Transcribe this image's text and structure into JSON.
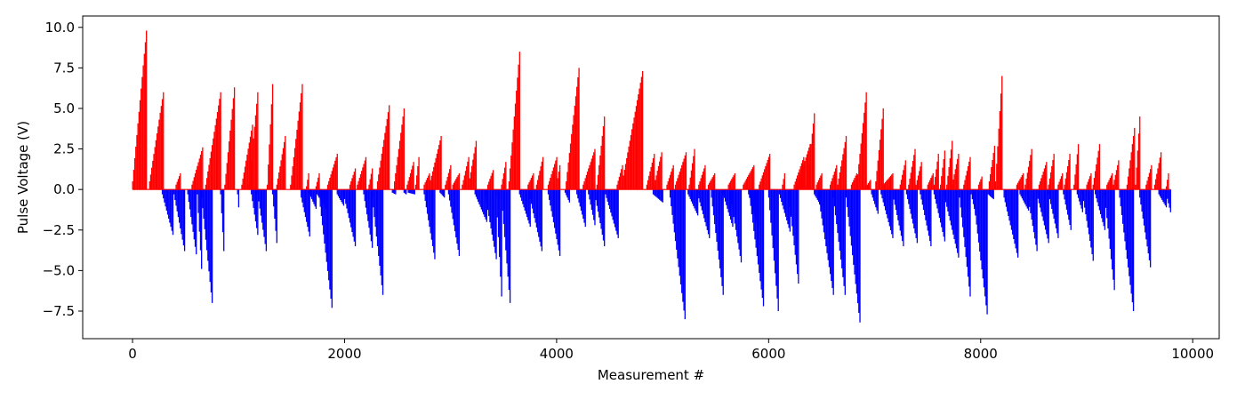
{
  "chart_data": {
    "type": "bar",
    "title": "",
    "xlabel": "Measurement #",
    "ylabel": "Pulse Voltage (V)",
    "xlim": [
      -470,
      10250
    ],
    "ylim": [
      -9.2,
      10.7
    ],
    "xticks": [
      0,
      2000,
      4000,
      6000,
      8000,
      10000
    ],
    "yticks": [
      -7.5,
      -5.0,
      -2.5,
      0.0,
      2.5,
      5.0,
      7.5,
      10.0
    ],
    "ytick_labels": [
      "−7.5",
      "−5.0",
      "−2.5",
      "0.0",
      "2.5",
      "5.0",
      "7.5",
      "10.0"
    ],
    "grid": false,
    "colors": {
      "positive": "#ff0000",
      "negative": "#0000ff"
    },
    "sample_step": 10,
    "positive_ramps": [
      [
        0,
        130,
        0.5,
        9.8
      ],
      [
        160,
        290,
        0.5,
        6.0
      ],
      [
        410,
        450,
        0.3,
        1.0
      ],
      [
        560,
        660,
        0.3,
        2.6
      ],
      [
        690,
        830,
        0.3,
        6.0
      ],
      [
        870,
        960,
        0.3,
        6.3
      ],
      [
        1030,
        1130,
        0.3,
        4.0
      ],
      [
        1100,
        1180,
        0.3,
        6.0
      ],
      [
        1270,
        1320,
        0.3,
        6.5
      ],
      [
        1360,
        1440,
        0.3,
        3.3
      ],
      [
        1490,
        1600,
        0.3,
        6.5
      ],
      [
        1640,
        1660,
        0.2,
        1.0
      ],
      [
        1730,
        1760,
        0.2,
        1.0
      ],
      [
        1840,
        1930,
        0.3,
        2.2
      ],
      [
        2050,
        2100,
        0.3,
        1.3
      ],
      [
        2120,
        2200,
        0.3,
        2.0
      ],
      [
        2230,
        2260,
        0.3,
        1.3
      ],
      [
        2310,
        2420,
        0.5,
        5.2
      ],
      [
        2470,
        2560,
        0.5,
        5.0
      ],
      [
        2590,
        2650,
        0.3,
        1.7
      ],
      [
        2670,
        2700,
        0.3,
        2.0
      ],
      [
        2750,
        2800,
        0.3,
        1.0
      ],
      [
        2800,
        2910,
        0.3,
        3.3
      ],
      [
        2950,
        3000,
        0.3,
        1.5
      ],
      [
        3020,
        3080,
        0.3,
        1.0
      ],
      [
        3110,
        3170,
        0.3,
        2.0
      ],
      [
        3170,
        3240,
        0.3,
        3.0
      ],
      [
        3350,
        3400,
        0.3,
        1.2
      ],
      [
        3480,
        3520,
        0.3,
        1.7
      ],
      [
        3550,
        3650,
        0.5,
        8.5
      ],
      [
        3730,
        3780,
        0.3,
        1.0
      ],
      [
        3810,
        3870,
        0.3,
        2.0
      ],
      [
        3920,
        4000,
        0.3,
        2.0
      ],
      [
        4000,
        4030,
        0.3,
        1.5
      ],
      [
        4090,
        4210,
        0.5,
        7.5
      ],
      [
        4250,
        4360,
        0.3,
        2.5
      ],
      [
        4380,
        4450,
        0.3,
        4.5
      ],
      [
        4570,
        4620,
        0.3,
        1.5
      ],
      [
        4620,
        4810,
        0.5,
        7.3
      ],
      [
        4850,
        4920,
        0.3,
        2.2
      ],
      [
        4920,
        4990,
        0.3,
        2.3
      ],
      [
        5040,
        5100,
        0.3,
        1.5
      ],
      [
        5120,
        5220,
        0.3,
        2.3
      ],
      [
        5250,
        5300,
        0.3,
        2.5
      ],
      [
        5340,
        5400,
        0.3,
        1.5
      ],
      [
        5430,
        5490,
        0.3,
        1.0
      ],
      [
        5620,
        5680,
        0.3,
        1.0
      ],
      [
        5760,
        5860,
        0.3,
        1.5
      ],
      [
        5910,
        6010,
        0.3,
        2.2
      ],
      [
        6130,
        6150,
        0.3,
        1.0
      ],
      [
        6240,
        6330,
        0.3,
        2.0
      ],
      [
        6270,
        6390,
        0.3,
        2.8
      ],
      [
        6360,
        6430,
        0.3,
        4.7
      ],
      [
        6450,
        6500,
        0.3,
        1.0
      ],
      [
        6580,
        6640,
        0.3,
        1.5
      ],
      [
        6650,
        6730,
        0.3,
        3.3
      ],
      [
        6780,
        6830,
        0.3,
        1.0
      ],
      [
        6830,
        6920,
        0.3,
        6.0
      ],
      [
        6920,
        6960,
        0.2,
        0.6
      ],
      [
        7010,
        7080,
        0.5,
        5.0
      ],
      [
        7080,
        7170,
        0.3,
        1.0
      ],
      [
        7240,
        7290,
        0.3,
        1.8
      ],
      [
        7320,
        7380,
        0.3,
        2.5
      ],
      [
        7390,
        7440,
        0.3,
        1.7
      ],
      [
        7500,
        7550,
        0.3,
        1.0
      ],
      [
        7560,
        7600,
        0.3,
        2.2
      ],
      [
        7620,
        7660,
        0.3,
        2.4
      ],
      [
        7680,
        7730,
        0.3,
        3.0
      ],
      [
        7730,
        7790,
        0.3,
        2.2
      ],
      [
        7840,
        7900,
        0.3,
        2.0
      ],
      [
        7980,
        8010,
        0.3,
        0.8
      ],
      [
        8080,
        8130,
        0.5,
        2.7
      ],
      [
        8140,
        8200,
        0.5,
        7.0
      ],
      [
        8340,
        8400,
        0.3,
        1.0
      ],
      [
        8420,
        8480,
        0.3,
        2.5
      ],
      [
        8550,
        8620,
        0.3,
        1.7
      ],
      [
        8640,
        8690,
        0.3,
        2.2
      ],
      [
        8730,
        8770,
        0.3,
        1.0
      ],
      [
        8790,
        8840,
        0.3,
        2.2
      ],
      [
        8880,
        8920,
        0.3,
        2.8
      ],
      [
        9000,
        9040,
        0.3,
        1.0
      ],
      [
        9060,
        9120,
        0.3,
        2.8
      ],
      [
        9190,
        9240,
        0.3,
        1.0
      ],
      [
        9250,
        9300,
        0.3,
        1.8
      ],
      [
        9380,
        9450,
        0.3,
        3.8
      ],
      [
        9460,
        9500,
        0.3,
        4.5
      ],
      [
        9560,
        9610,
        0.3,
        1.5
      ],
      [
        9640,
        9700,
        0.3,
        2.3
      ],
      [
        9750,
        9770,
        0.2,
        1.0
      ]
    ],
    "negative_ramps": [
      [
        280,
        380,
        -0.3,
        -2.8
      ],
      [
        390,
        490,
        -0.3,
        -3.8
      ],
      [
        520,
        600,
        -0.3,
        -4.0
      ],
      [
        610,
        650,
        -0.3,
        -4.9
      ],
      [
        650,
        750,
        -0.5,
        -7.0
      ],
      [
        830,
        860,
        -0.3,
        -3.8
      ],
      [
        990,
        1000,
        -0.3,
        -1.1
      ],
      [
        1120,
        1180,
        -0.3,
        -2.8
      ],
      [
        1180,
        1260,
        -0.3,
        -3.8
      ],
      [
        1320,
        1360,
        -0.3,
        -3.3
      ],
      [
        1590,
        1670,
        -0.5,
        -2.9
      ],
      [
        1670,
        1730,
        -0.3,
        -1.2
      ],
      [
        1740,
        1830,
        -0.3,
        -1.2
      ],
      [
        1760,
        1880,
        -0.5,
        -7.3
      ],
      [
        1930,
        1990,
        -0.3,
        -1.0
      ],
      [
        1990,
        2100,
        -0.3,
        -3.5
      ],
      [
        2180,
        2260,
        -0.3,
        -3.6
      ],
      [
        2260,
        2360,
        -0.5,
        -6.5
      ],
      [
        2450,
        2480,
        -0.2,
        -0.3
      ],
      [
        2560,
        2580,
        -0.2,
        -0.3
      ],
      [
        2600,
        2660,
        -0.2,
        -0.3
      ],
      [
        2750,
        2850,
        -0.3,
        -4.3
      ],
      [
        2900,
        2940,
        -0.2,
        -0.5
      ],
      [
        2980,
        3080,
        -0.3,
        -4.1
      ],
      [
        3230,
        3340,
        -0.3,
        -2.0
      ],
      [
        3330,
        3430,
        -0.5,
        -4.3
      ],
      [
        3430,
        3480,
        -0.5,
        -6.6
      ],
      [
        3480,
        3560,
        -0.5,
        -7.0
      ],
      [
        3650,
        3750,
        -0.3,
        -2.3
      ],
      [
        3740,
        3860,
        -0.3,
        -3.8
      ],
      [
        3920,
        4030,
        -0.3,
        -4.1
      ],
      [
        4080,
        4120,
        -0.2,
        -0.8
      ],
      [
        4190,
        4270,
        -0.3,
        -2.3
      ],
      [
        4300,
        4360,
        -0.3,
        -2.2
      ],
      [
        4360,
        4450,
        -0.3,
        -3.5
      ],
      [
        4460,
        4580,
        -0.3,
        -3.0
      ],
      [
        4910,
        5000,
        -0.3,
        -0.8
      ],
      [
        5070,
        5210,
        -0.5,
        -8.0
      ],
      [
        5240,
        5330,
        -0.3,
        -1.6
      ],
      [
        5330,
        5440,
        -0.3,
        -3.0
      ],
      [
        5460,
        5570,
        -0.5,
        -6.5
      ],
      [
        5570,
        5660,
        -0.3,
        -2.3
      ],
      [
        5640,
        5740,
        -0.5,
        -4.5
      ],
      [
        5810,
        5900,
        -0.3,
        -2.3
      ],
      [
        5820,
        5950,
        -0.5,
        -7.2
      ],
      [
        6000,
        6090,
        -0.5,
        -7.5
      ],
      [
        6100,
        6200,
        -0.3,
        -2.6
      ],
      [
        6190,
        6280,
        -0.5,
        -5.8
      ],
      [
        6430,
        6500,
        -0.3,
        -1.1
      ],
      [
        6470,
        6610,
        -0.5,
        -6.5
      ],
      [
        6610,
        6720,
        -0.5,
        -6.5
      ],
      [
        6730,
        6860,
        -0.5,
        -8.2
      ],
      [
        6970,
        7030,
        -0.3,
        -1.5
      ],
      [
        7060,
        7170,
        -0.3,
        -3.0
      ],
      [
        7170,
        7270,
        -0.3,
        -3.5
      ],
      [
        7300,
        7400,
        -0.3,
        -3.3
      ],
      [
        7430,
        7530,
        -0.3,
        -3.5
      ],
      [
        7560,
        7660,
        -0.3,
        -3.2
      ],
      [
        7660,
        7790,
        -0.5,
        -4.2
      ],
      [
        7800,
        7900,
        -0.5,
        -6.6
      ],
      [
        7910,
        7950,
        -0.3,
        -1.5
      ],
      [
        7930,
        8060,
        -0.5,
        -7.7
      ],
      [
        8070,
        8120,
        -0.3,
        -0.6
      ],
      [
        8220,
        8350,
        -0.5,
        -4.2
      ],
      [
        8370,
        8450,
        -0.3,
        -1.3
      ],
      [
        8440,
        8530,
        -0.3,
        -3.8
      ],
      [
        8530,
        8640,
        -0.3,
        -3.3
      ],
      [
        8640,
        8730,
        -0.3,
        -3.0
      ],
      [
        8780,
        8850,
        -0.3,
        -2.5
      ],
      [
        8910,
        8960,
        -0.3,
        -1.4
      ],
      [
        8960,
        9060,
        -0.3,
        -4.4
      ],
      [
        9080,
        9170,
        -0.3,
        -2.5
      ],
      [
        9170,
        9260,
        -0.5,
        -6.2
      ],
      [
        9310,
        9440,
        -0.5,
        -7.5
      ],
      [
        9500,
        9600,
        -0.5,
        -4.8
      ],
      [
        9680,
        9750,
        -0.3,
        -1.1
      ],
      [
        9750,
        9790,
        -0.3,
        -1.4
      ]
    ]
  }
}
